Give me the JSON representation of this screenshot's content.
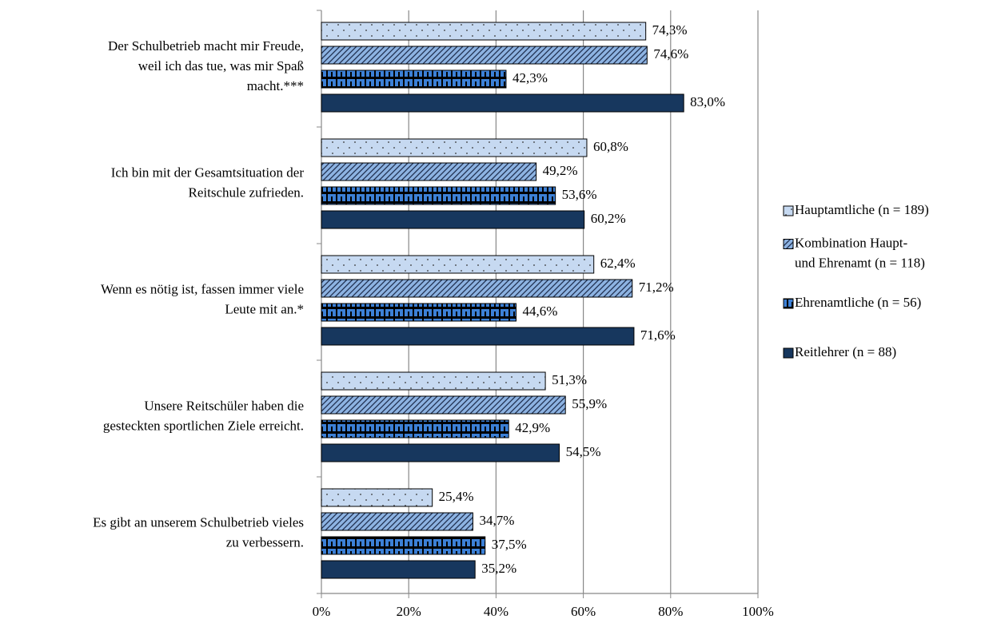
{
  "chart_data": {
    "type": "bar",
    "orientation": "horizontal",
    "categories": [
      "Der Schulbetrieb macht mir Freude,\nweil ich das tue, was mir Spaß\nmacht.***",
      "Ich bin mit der Gesamtsituation der\nReitschule zufrieden.",
      "Wenn es nötig ist, fassen immer viele\nLeute mit an.*",
      "Unsere Reitschüler haben die\ngesteckten sportlichen Ziele erreicht.",
      "Es gibt an unserem Schulbetrieb vieles\nzu verbessern."
    ],
    "series": [
      {
        "name": "Hauptamtliche (n = 189)",
        "color": "#c6d9f1",
        "values": [
          74.3,
          60.8,
          62.4,
          51.3,
          25.4
        ],
        "value_labels": [
          "74,3%",
          "60,8%",
          "62,4%",
          "51,3%",
          "25,4%"
        ]
      },
      {
        "name": "Kombination Haupt-\nund Ehrenamt (n = 118)",
        "color": "#8db3e2",
        "values": [
          74.6,
          49.2,
          71.2,
          55.9,
          34.7
        ],
        "value_labels": [
          "74,6%",
          "49,2%",
          "71,2%",
          "55,9%",
          "34,7%"
        ]
      },
      {
        "name": "Ehrenamtliche (n = 56)",
        "color": "#3c80d6",
        "values": [
          42.3,
          53.6,
          44.6,
          42.9,
          37.5
        ],
        "value_labels": [
          "42,3%",
          "53,6%",
          "44,6%",
          "42,9%",
          "37,5%"
        ]
      },
      {
        "name": "Reitlehrer (n = 88)",
        "color": "#17375e",
        "values": [
          83.0,
          60.2,
          71.6,
          54.5,
          35.2
        ],
        "value_labels": [
          "83,0%",
          "60,2%",
          "71,6%",
          "54,5%",
          "35,2%"
        ]
      }
    ],
    "xlim": [
      0,
      100
    ],
    "xticks": [
      {
        "value": 0,
        "label": "0%"
      },
      {
        "value": 20,
        "label": "20%"
      },
      {
        "value": 40,
        "label": "40%"
      },
      {
        "value": 60,
        "label": "60%"
      },
      {
        "value": 80,
        "label": "80%"
      },
      {
        "value": 100,
        "label": "100%"
      }
    ],
    "grid": true,
    "legend": "right"
  }
}
